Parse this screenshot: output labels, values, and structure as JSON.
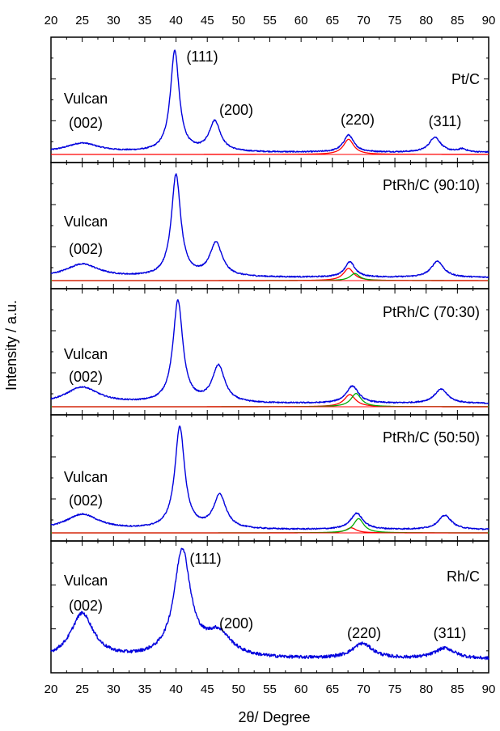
{
  "chart_data": {
    "type": "line",
    "xlabel": "2θ/ Degree",
    "ylabel": "Intensity / a.u.",
    "xlim": [
      20,
      90
    ],
    "xticks": [
      "20",
      "25",
      "30",
      "35",
      "40",
      "45",
      "50",
      "55",
      "60",
      "65",
      "70",
      "75",
      "80",
      "85",
      "90"
    ],
    "panels": [
      {
        "name": "Pt/C",
        "labels": [
          "Vulcan",
          "(002)",
          "(111)",
          "(200)",
          "(220)",
          "(311)"
        ],
        "baseline": 0,
        "ymax": 1.05,
        "series": [
          {
            "name": "measured",
            "color": "#0000dd",
            "peaks": [
              [
                25,
                0.09,
                3.2
              ],
              [
                39.8,
                1.0,
                0.85
              ],
              [
                46.2,
                0.3,
                1.1
              ],
              [
                67.6,
                0.17,
                1.0
              ],
              [
                81.4,
                0.15,
                1.1
              ],
              [
                85.8,
                0.03,
                0.8
              ]
            ]
          },
          {
            "name": "fit-red",
            "color": "#ff0000",
            "peaks": [
              [
                67.6,
                0.15,
                1.0
              ]
            ]
          }
        ],
        "background": 0.02
      },
      {
        "name": "PtRh/C (90:10)",
        "labels": [
          "Vulcan",
          "(002)"
        ],
        "ymax": 1.05,
        "series": [
          {
            "name": "measured",
            "color": "#0000dd",
            "peaks": [
              [
                25,
                0.13,
                3.2
              ],
              [
                40.0,
                1.0,
                0.9
              ],
              [
                46.4,
                0.33,
                1.2
              ],
              [
                67.8,
                0.15,
                1.0
              ],
              [
                81.8,
                0.16,
                1.2
              ]
            ]
          },
          {
            "name": "fit-red",
            "color": "#ff0000",
            "peaks": [
              [
                67.6,
                0.12,
                1.0
              ]
            ]
          },
          {
            "name": "fit-green",
            "color": "#00aa00",
            "peaks": [
              [
                68.6,
                0.07,
                0.9
              ]
            ]
          }
        ],
        "background": 0.03
      },
      {
        "name": "PtRh/C (70:30)",
        "labels": [
          "Vulcan",
          "(002)"
        ],
        "ymax": 1.05,
        "series": [
          {
            "name": "measured",
            "color": "#0000dd",
            "peaks": [
              [
                25,
                0.16,
                3.2
              ],
              [
                40.3,
                1.0,
                0.95
              ],
              [
                46.8,
                0.36,
                1.2
              ],
              [
                68.2,
                0.17,
                1.2
              ],
              [
                82.4,
                0.14,
                1.3
              ]
            ]
          },
          {
            "name": "fit-red",
            "color": "#ff0000",
            "peaks": [
              [
                67.8,
                0.12,
                1.1
              ]
            ]
          },
          {
            "name": "fit-green",
            "color": "#00aa00",
            "peaks": [
              [
                68.8,
                0.13,
                1.0
              ]
            ]
          }
        ],
        "background": 0.03
      },
      {
        "name": "PtRh/C (50:50)",
        "labels": [
          "Vulcan",
          "(002)"
        ],
        "ymax": 1.05,
        "series": [
          {
            "name": "measured",
            "color": "#0000dd",
            "peaks": [
              [
                25,
                0.15,
                3.2
              ],
              [
                40.6,
                1.0,
                0.95
              ],
              [
                47.0,
                0.33,
                1.2
              ],
              [
                68.9,
                0.16,
                1.2
              ],
              [
                83.0,
                0.14,
                1.3
              ]
            ]
          },
          {
            "name": "fit-red",
            "color": "#ff0000",
            "peaks": [
              [
                68.0,
                0.05,
                1.0
              ]
            ]
          },
          {
            "name": "fit-green",
            "color": "#00aa00",
            "peaks": [
              [
                69.2,
                0.14,
                1.0
              ]
            ]
          }
        ],
        "background": 0.03
      },
      {
        "name": "Rh/C",
        "labels": [
          "Vulcan",
          "(002)",
          "(111)",
          "(200)",
          "(220)",
          "(311)"
        ],
        "ymax": 1.05,
        "series": [
          {
            "name": "measured",
            "color": "#0000dd",
            "peaks": [
              [
                25,
                0.42,
                2.2
              ],
              [
                41.0,
                1.0,
                1.6
              ],
              [
                46.8,
                0.22,
                2.5
              ],
              [
                69.8,
                0.14,
                2.0
              ],
              [
                83.0,
                0.1,
                2.0
              ]
            ]
          }
        ],
        "background": 0.05,
        "noise": 0.03
      }
    ]
  }
}
